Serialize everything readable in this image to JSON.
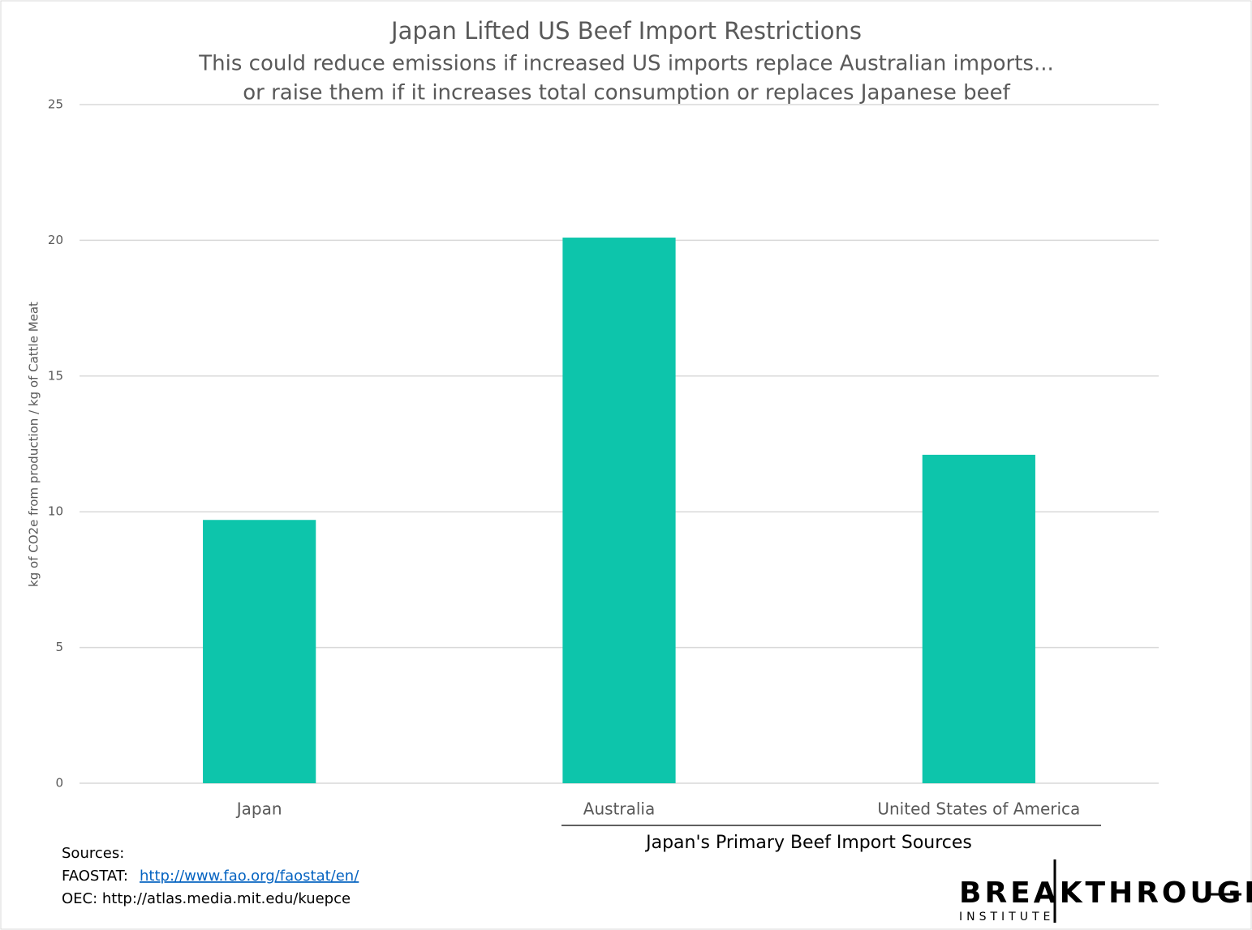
{
  "chart_data": {
    "type": "bar",
    "title": "Japan Lifted US Beef Import Restrictions",
    "subtitle": [
      "This could reduce emissions if increased US imports replace Australian imports...",
      "or raise them if it increases total consumption or replaces Japanese beef"
    ],
    "y_label": "kg of CO2e from production / kg of Cattle Meat",
    "x_group_label": "Japan's Primary Beef Import Sources",
    "categories": [
      "Japan",
      "Australia",
      "United States of America"
    ],
    "values": [
      9.7,
      20.1,
      12.1
    ],
    "color": "#0dc5ab",
    "ylim": [
      0,
      25
    ],
    "yticks": [
      0,
      5,
      10,
      15,
      20,
      25
    ],
    "grid": true
  },
  "sources": {
    "heading": "Sources:",
    "faostat_prefix": "FAOSTAT:",
    "faostat_link": "http://www.fao.org/faostat/en/",
    "oec": "OEC: http://atlas.media.mit.edu/kuepce"
  },
  "logo": {
    "name": "BREAKTHROUGH",
    "sub": "INSTITUTE"
  }
}
